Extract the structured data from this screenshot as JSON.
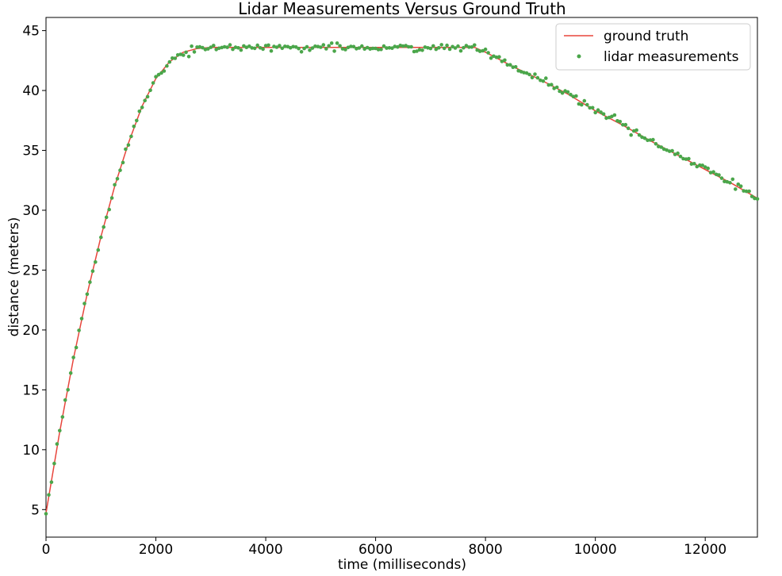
{
  "chart_data": {
    "type": "scatter",
    "title": "Lidar Measurements Versus Ground Truth",
    "xlabel": "time (milliseconds)",
    "ylabel": "distance (meters)",
    "xlim": [
      0,
      12950
    ],
    "ylim": [
      2.7,
      46.1
    ],
    "xticks": [
      0,
      2000,
      4000,
      6000,
      8000,
      10000,
      12000
    ],
    "yticks": [
      5,
      10,
      15,
      20,
      25,
      30,
      35,
      40,
      45
    ],
    "grid": false,
    "legend_position": "top-right",
    "colors": {
      "ground_truth": "#e8453c",
      "lidar": "#4aa64a"
    },
    "series": [
      {
        "name": "ground truth",
        "kind": "line",
        "points": [
          [
            0,
            4.7
          ],
          [
            250,
            11.5
          ],
          [
            500,
            17.6
          ],
          [
            750,
            23.0
          ],
          [
            1000,
            27.8
          ],
          [
            1250,
            32.0
          ],
          [
            1500,
            35.6
          ],
          [
            1750,
            38.7
          ],
          [
            2000,
            41.0
          ],
          [
            2250,
            42.4
          ],
          [
            2500,
            43.2
          ],
          [
            2750,
            43.5
          ],
          [
            3000,
            43.6
          ],
          [
            4000,
            43.6
          ],
          [
            5000,
            43.6
          ],
          [
            6000,
            43.6
          ],
          [
            7000,
            43.6
          ],
          [
            7800,
            43.6
          ],
          [
            8000,
            43.2
          ],
          [
            8500,
            42.0
          ],
          [
            9000,
            40.9
          ],
          [
            9500,
            39.7
          ],
          [
            10000,
            38.3
          ],
          [
            10500,
            37.1
          ],
          [
            11000,
            35.8
          ],
          [
            11500,
            34.6
          ],
          [
            12000,
            33.4
          ],
          [
            12500,
            32.2
          ],
          [
            12950,
            31.0
          ]
        ]
      },
      {
        "name": "lidar measurements",
        "kind": "scatter",
        "noise_seed": 7,
        "sample_interval": 50,
        "noise_amplitude": 0.15
      }
    ]
  }
}
